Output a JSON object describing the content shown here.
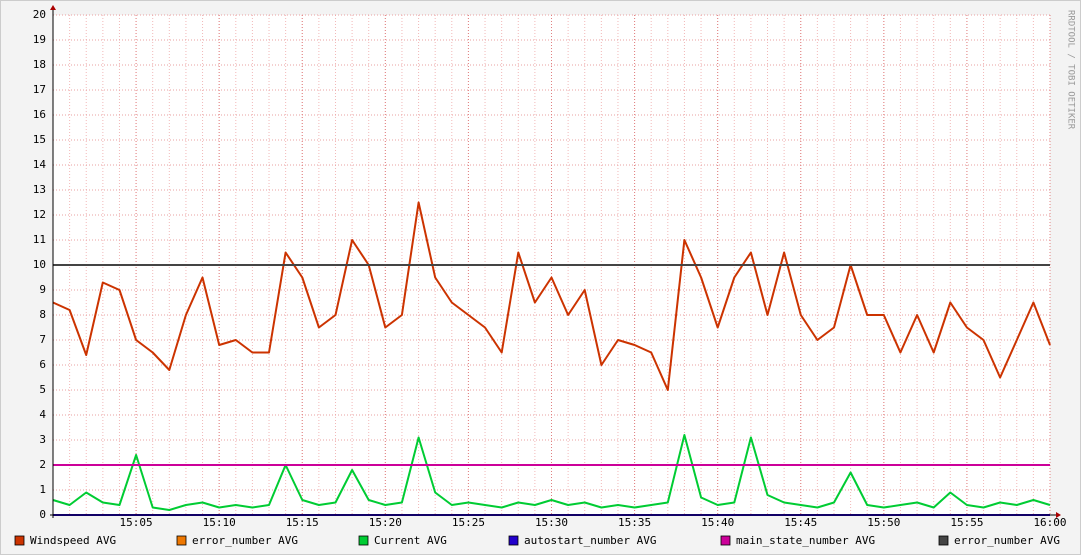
{
  "chart_data": {
    "type": "line",
    "watermark": "RRDTOOL / TOBI OETIKER",
    "x": [
      "15:00",
      "15:01",
      "15:02",
      "15:03",
      "15:04",
      "15:05",
      "15:06",
      "15:07",
      "15:08",
      "15:09",
      "15:10",
      "15:11",
      "15:12",
      "15:13",
      "15:14",
      "15:15",
      "15:16",
      "15:17",
      "15:18",
      "15:19",
      "15:20",
      "15:21",
      "15:22",
      "15:23",
      "15:24",
      "15:25",
      "15:26",
      "15:27",
      "15:28",
      "15:29",
      "15:30",
      "15:31",
      "15:32",
      "15:33",
      "15:34",
      "15:35",
      "15:36",
      "15:37",
      "15:38",
      "15:39",
      "15:40",
      "15:41",
      "15:42",
      "15:43",
      "15:44",
      "15:45",
      "15:46",
      "15:47",
      "15:48",
      "15:49",
      "15:50",
      "15:51",
      "15:52",
      "15:53",
      "15:54",
      "15:55",
      "15:56",
      "15:57",
      "15:58",
      "15:59",
      "16:00"
    ],
    "xlim": [
      "15:00",
      "16:00"
    ],
    "xticks": [
      "15:05",
      "15:10",
      "15:15",
      "15:20",
      "15:25",
      "15:30",
      "15:35",
      "15:40",
      "15:45",
      "15:50",
      "15:55",
      "16:00"
    ],
    "ylim": [
      0,
      20
    ],
    "yticks": [
      0,
      1,
      2,
      3,
      4,
      5,
      6,
      7,
      8,
      9,
      10,
      11,
      12,
      13,
      14,
      15,
      16,
      17,
      18,
      19,
      20
    ],
    "grid": true,
    "series": [
      {
        "name": "Windspeed AVG",
        "color": "#cc3300",
        "values": [
          8.5,
          8.2,
          6.4,
          9.3,
          9,
          7,
          6.5,
          5.8,
          8,
          9.5,
          6.8,
          7,
          6.5,
          6.5,
          10.5,
          9.5,
          7.5,
          8,
          11,
          10,
          7.5,
          8,
          12.5,
          9.5,
          8.5,
          8,
          7.5,
          6.5,
          10.5,
          8.5,
          9.5,
          8,
          9,
          6,
          7,
          6.8,
          6.5,
          5,
          11,
          9.5,
          7.5,
          9.5,
          10.5,
          8,
          10.5,
          8,
          7,
          7.5,
          10,
          8,
          8,
          6.5,
          8,
          6.5,
          8.5,
          7.5,
          7,
          5.5,
          7,
          8.5,
          6.8
        ]
      },
      {
        "name": "error_number AVG",
        "color": "#ee7700",
        "values": [
          0,
          0,
          0,
          0,
          0,
          0,
          0,
          0,
          0,
          0,
          0,
          0,
          0,
          0,
          0,
          0,
          0,
          0,
          0,
          0,
          0,
          0,
          0,
          0,
          0,
          0,
          0,
          0,
          0,
          0,
          0,
          0,
          0,
          0,
          0,
          0,
          0,
          0,
          0,
          0,
          0,
          0,
          0,
          0,
          0,
          0,
          0,
          0,
          0,
          0,
          0,
          0,
          0,
          0,
          0,
          0,
          0,
          0,
          0,
          0,
          0
        ]
      },
      {
        "name": "Current AVG",
        "color": "#00cc33",
        "values": [
          0.6,
          0.4,
          0.9,
          0.5,
          0.4,
          2.4,
          0.3,
          0.2,
          0.4,
          0.5,
          0.3,
          0.4,
          0.3,
          0.4,
          2,
          0.6,
          0.4,
          0.5,
          1.8,
          0.6,
          0.4,
          0.5,
          3.1,
          0.9,
          0.4,
          0.5,
          0.4,
          0.3,
          0.5,
          0.4,
          0.6,
          0.4,
          0.5,
          0.3,
          0.4,
          0.3,
          0.4,
          0.5,
          3.2,
          0.7,
          0.4,
          0.5,
          3.1,
          0.8,
          0.5,
          0.4,
          0.3,
          0.5,
          1.7,
          0.4,
          0.3,
          0.4,
          0.5,
          0.3,
          0.9,
          0.4,
          0.3,
          0.5,
          0.4,
          0.6,
          0.4
        ]
      },
      {
        "name": "autostart_number AVG",
        "color": "#2200cc",
        "values": [
          0,
          0,
          0,
          0,
          0,
          0,
          0,
          0,
          0,
          0,
          0,
          0,
          0,
          0,
          0,
          0,
          0,
          0,
          0,
          0,
          0,
          0,
          0,
          0,
          0,
          0,
          0,
          0,
          0,
          0,
          0,
          0,
          0,
          0,
          0,
          0,
          0,
          0,
          0,
          0,
          0,
          0,
          0,
          0,
          0,
          0,
          0,
          0,
          0,
          0,
          0,
          0,
          0,
          0,
          0,
          0,
          0,
          0,
          0,
          0,
          0
        ]
      },
      {
        "name": "main_state_number AVG",
        "color": "#cc0099",
        "values": [
          2,
          2,
          2,
          2,
          2,
          2,
          2,
          2,
          2,
          2,
          2,
          2,
          2,
          2,
          2,
          2,
          2,
          2,
          2,
          2,
          2,
          2,
          2,
          2,
          2,
          2,
          2,
          2,
          2,
          2,
          2,
          2,
          2,
          2,
          2,
          2,
          2,
          2,
          2,
          2,
          2,
          2,
          2,
          2,
          2,
          2,
          2,
          2,
          2,
          2,
          2,
          2,
          2,
          2,
          2,
          2,
          2,
          2,
          2,
          2,
          2
        ]
      },
      {
        "name": "error_number AVG",
        "color": "#444444",
        "values": [
          10,
          10,
          10,
          10,
          10,
          10,
          10,
          10,
          10,
          10,
          10,
          10,
          10,
          10,
          10,
          10,
          10,
          10,
          10,
          10,
          10,
          10,
          10,
          10,
          10,
          10,
          10,
          10,
          10,
          10,
          10,
          10,
          10,
          10,
          10,
          10,
          10,
          10,
          10,
          10,
          10,
          10,
          10,
          10,
          10,
          10,
          10,
          10,
          10,
          10,
          10,
          10,
          10,
          10,
          10,
          10,
          10,
          10,
          10,
          10,
          10
        ]
      }
    ]
  }
}
